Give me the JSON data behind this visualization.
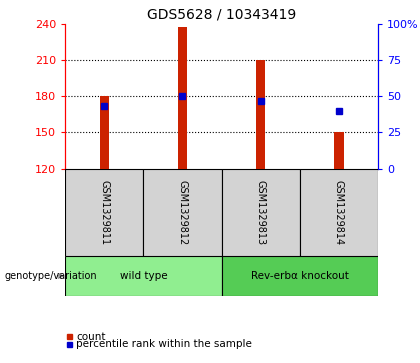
{
  "title": "GDS5628 / 10343419",
  "samples": [
    "GSM1329811",
    "GSM1329812",
    "GSM1329813",
    "GSM1329814"
  ],
  "bar_bottom": 120,
  "bar_tops": [
    180,
    237,
    210,
    150
  ],
  "percentile_values": [
    172,
    180,
    176,
    168
  ],
  "ylim_left": [
    120,
    240
  ],
  "ylim_right": [
    0,
    100
  ],
  "yticks_left": [
    120,
    150,
    180,
    210,
    240
  ],
  "yticks_right": [
    0,
    25,
    50,
    75,
    100
  ],
  "groups": [
    {
      "label": "wild type",
      "samples": [
        0,
        1
      ],
      "color": "#90EE90"
    },
    {
      "label": "Rev-erbα knockout",
      "samples": [
        2,
        3
      ],
      "color": "#55CC55"
    }
  ],
  "bar_color": "#CC2200",
  "blue_color": "#0000CC",
  "bar_width": 0.12,
  "genotype_label": "genotype/variation",
  "legend_count": "count",
  "legend_pct": "percentile rank within the sample",
  "grid_yticks": [
    150,
    180,
    210
  ],
  "bg_color": "#D3D3D3"
}
